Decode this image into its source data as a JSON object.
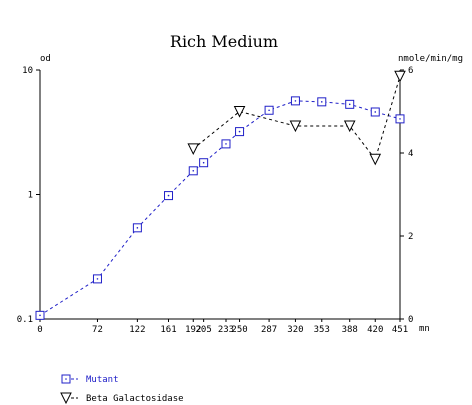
{
  "chart_data": {
    "type": "line",
    "title": "Rich Medium",
    "xlabel": "mn",
    "ylabel_left": "od",
    "ylabel_right": "nmole/min/mg",
    "x_ticks": [
      0,
      72,
      122,
      161,
      192,
      205,
      233,
      250,
      287,
      320,
      353,
      388,
      420,
      451
    ],
    "x_tick_labels": [
      "0",
      "72",
      "122",
      "161",
      "192",
      "205",
      "233",
      "250",
      "287",
      "320",
      "353",
      "388",
      "420",
      "451"
    ],
    "xlim": [
      0,
      451
    ],
    "y_left": {
      "scale": "log",
      "lim": [
        0.1,
        10
      ],
      "ticks": [
        0.1,
        1,
        10
      ],
      "tick_labels": [
        "0.1",
        "1",
        "10"
      ]
    },
    "y_right": {
      "scale": "linear",
      "lim": [
        0,
        6
      ],
      "ticks": [
        0,
        2,
        4,
        6
      ],
      "tick_labels": [
        "0",
        "2",
        "4",
        "6"
      ]
    },
    "grid": false,
    "legend_position": "bottom-left",
    "series": [
      {
        "name": "Mutant",
        "axis": "left",
        "marker": "square",
        "color": "#2020c8",
        "x": [
          0,
          72,
          122,
          161,
          192,
          205,
          233,
          250,
          287,
          320,
          353,
          388,
          420,
          451
        ],
        "y": [
          0.107,
          0.21,
          0.54,
          0.98,
          1.55,
          1.8,
          2.55,
          3.2,
          4.75,
          5.65,
          5.55,
          5.3,
          4.6,
          4.05
        ]
      },
      {
        "name": "Beta Galactosidase",
        "axis": "right",
        "marker": "triangle-down",
        "color": "#000000",
        "x": [
          192,
          250,
          320,
          388,
          420,
          451
        ],
        "y": [
          4.1,
          5.0,
          4.65,
          4.65,
          3.85,
          5.85
        ]
      }
    ]
  }
}
